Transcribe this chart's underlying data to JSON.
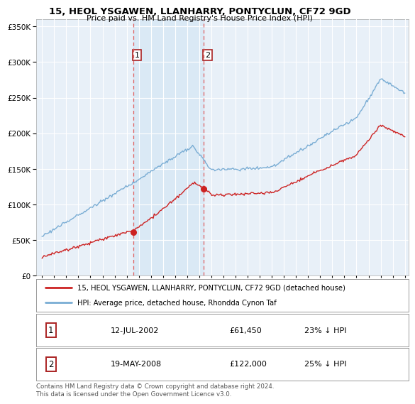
{
  "title": "15, HEOL YSGAWEN, LLANHARRY, PONTYCLUN, CF72 9GD",
  "subtitle": "Price paid vs. HM Land Registry's House Price Index (HPI)",
  "legend_line1": "15, HEOL YSGAWEN, LLANHARRY, PONTYCLUN, CF72 9GD (detached house)",
  "legend_line2": "HPI: Average price, detached house, Rhondda Cynon Taf",
  "sale1_label": "1",
  "sale1_date": "12-JUL-2002",
  "sale1_price": "£61,450",
  "sale1_hpi": "23% ↓ HPI",
  "sale2_label": "2",
  "sale2_date": "19-MAY-2008",
  "sale2_price": "£122,000",
  "sale2_hpi": "25% ↓ HPI",
  "footer": "Contains HM Land Registry data © Crown copyright and database right 2024.\nThis data is licensed under the Open Government Licence v3.0.",
  "sale1_year": 2002.53,
  "sale1_value": 61450,
  "sale2_year": 2008.38,
  "sale2_value": 122000,
  "hpi_color": "#7aadd4",
  "price_color": "#cc2222",
  "vline_color": "#e06060",
  "shade_color": "#d8e8f5",
  "marker_color": "#cc2222",
  "background_color": "#e8f0f8",
  "ylim_max": 360000,
  "ylim_min": 0,
  "xlim_min": 1994.5,
  "xlim_max": 2025.3
}
